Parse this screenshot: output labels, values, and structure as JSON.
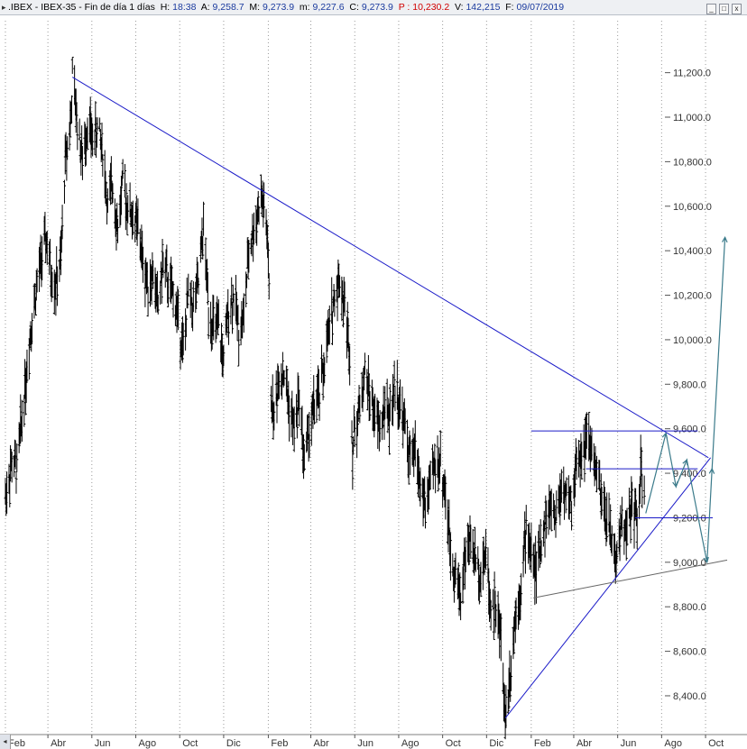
{
  "header": {
    "symbol": ".IBEX",
    "separator1": " - ",
    "name": "IBEX-35",
    "separator2": " - ",
    "period": "Fin de día 1 días",
    "h_label": "H:",
    "h_value": "18:38",
    "a_label": "A:",
    "a_value": "9,258.7",
    "m_label": "M:",
    "m_value": "9,273.9",
    "min_label": "m:",
    "min_value": "9,227.6",
    "c_label": "C:",
    "c_value": "9,273.9",
    "p_label": "P :",
    "p_value": "10,230.2",
    "v_label": "V:",
    "v_value": "142,215",
    "f_label": "F:",
    "f_value": "09/07/2019",
    "win_buttons": [
      "_",
      "□",
      "x"
    ]
  },
  "chart_data": {
    "type": "line",
    "style": "price bars (OHLC), black, daily",
    "grid": "dotted vertical gridlines at month ticks",
    "y_axis": {
      "position": "right",
      "ylim": [
        8250,
        11320
      ],
      "ticks": [
        8400,
        8600,
        8800,
        9000,
        9200,
        9400,
        9600,
        9800,
        10000,
        10200,
        10400,
        10600,
        10800,
        11000,
        11200
      ],
      "tick_labels": [
        "8,400.0",
        "8,600.0",
        "8,800.0",
        "9,000.0",
        "9,200.0",
        "9,400.0",
        "9,600.0",
        "9,800.0",
        "10,000.0",
        "10,200.0",
        "10,400.0",
        "10,600.0",
        "10,800.0",
        "11,000.0",
        "11,200.0"
      ]
    },
    "x_axis": {
      "xlim": [
        "2017-02-01",
        "2019-11-10"
      ],
      "ticks": [
        {
          "date": "2017-02-01",
          "label": "Feb"
        },
        {
          "date": "2017-04-01",
          "label": "Abr"
        },
        {
          "date": "2017-06-01",
          "label": "Jun"
        },
        {
          "date": "2017-08-01",
          "label": "Ago"
        },
        {
          "date": "2017-10-01",
          "label": "Oct"
        },
        {
          "date": "2017-12-01",
          "label": "Dic"
        },
        {
          "date": "2018-02-01",
          "label": "Feb"
        },
        {
          "date": "2018-04-01",
          "label": "Abr"
        },
        {
          "date": "2018-06-01",
          "label": "Jun"
        },
        {
          "date": "2018-08-01",
          "label": "Ago"
        },
        {
          "date": "2018-10-01",
          "label": "Oct"
        },
        {
          "date": "2018-12-01",
          "label": "Dic"
        },
        {
          "date": "2019-02-01",
          "label": "Feb"
        },
        {
          "date": "2019-04-01",
          "label": "Abr"
        },
        {
          "date": "2019-06-01",
          "label": "Jun"
        },
        {
          "date": "2019-08-01",
          "label": "Ago"
        },
        {
          "date": "2019-10-01",
          "label": "Oct"
        }
      ]
    },
    "series": [
      {
        "kind": "price",
        "points": [
          [
            "2017-02-01",
            9300
          ],
          [
            "2017-02-10",
            9450
          ],
          [
            "2017-02-17",
            9420
          ],
          [
            "2017-02-27",
            9750
          ],
          [
            "2017-03-08",
            10050
          ],
          [
            "2017-03-17",
            10250
          ],
          [
            "2017-03-24",
            10380
          ],
          [
            "2017-03-30",
            10450
          ],
          [
            "2017-04-05",
            10300
          ],
          [
            "2017-04-12",
            10250
          ],
          [
            "2017-04-19",
            10350
          ],
          [
            "2017-04-25",
            10800
          ],
          [
            "2017-05-03",
            11000
          ],
          [
            "2017-05-05",
            11180
          ],
          [
            "2017-05-12",
            10980
          ],
          [
            "2017-05-19",
            10800
          ],
          [
            "2017-05-26",
            10980
          ],
          [
            "2017-06-02",
            10900
          ],
          [
            "2017-06-09",
            10950
          ],
          [
            "2017-06-16",
            10850
          ],
          [
            "2017-06-23",
            10600
          ],
          [
            "2017-06-30",
            10700
          ],
          [
            "2017-07-07",
            10500
          ],
          [
            "2017-07-14",
            10700
          ],
          [
            "2017-07-21",
            10600
          ],
          [
            "2017-07-28",
            10550
          ],
          [
            "2017-08-04",
            10500
          ],
          [
            "2017-08-11",
            10350
          ],
          [
            "2017-08-18",
            10250
          ],
          [
            "2017-08-25",
            10300
          ],
          [
            "2017-09-01",
            10150
          ],
          [
            "2017-09-08",
            10350
          ],
          [
            "2017-09-15",
            10250
          ],
          [
            "2017-09-22",
            10200
          ],
          [
            "2017-09-29",
            10100
          ],
          [
            "2017-10-06",
            9950
          ],
          [
            "2017-10-13",
            10200
          ],
          [
            "2017-10-20",
            10150
          ],
          [
            "2017-10-27",
            10250
          ],
          [
            "2017-11-03",
            10500
          ],
          [
            "2017-11-10",
            10150
          ],
          [
            "2017-11-17",
            10050
          ],
          [
            "2017-11-24",
            10050
          ],
          [
            "2017-12-01",
            9900
          ],
          [
            "2017-12-08",
            10150
          ],
          [
            "2017-12-15",
            10200
          ],
          [
            "2017-12-22",
            10050
          ],
          [
            "2017-12-29",
            10100
          ],
          [
            "2018-01-05",
            10400
          ],
          [
            "2018-01-12",
            10500
          ],
          [
            "2018-01-19",
            10600
          ],
          [
            "2018-01-24",
            10630
          ],
          [
            "2018-01-31",
            10450
          ],
          [
            "2018-02-02",
            10200
          ],
          [
            "2018-02-05",
            9750
          ],
          [
            "2018-02-09",
            9650
          ],
          [
            "2018-02-16",
            9850
          ],
          [
            "2018-02-23",
            9850
          ],
          [
            "2018-03-02",
            9700
          ],
          [
            "2018-03-09",
            9600
          ],
          [
            "2018-03-16",
            9750
          ],
          [
            "2018-03-23",
            9450
          ],
          [
            "2018-03-30",
            9600
          ],
          [
            "2018-04-06",
            9700
          ],
          [
            "2018-04-13",
            9750
          ],
          [
            "2018-04-20",
            9900
          ],
          [
            "2018-04-27",
            10050
          ],
          [
            "2018-05-04",
            10200
          ],
          [
            "2018-05-10",
            10280
          ],
          [
            "2018-05-18",
            10150
          ],
          [
            "2018-05-25",
            9950
          ],
          [
            "2018-05-29",
            9500
          ],
          [
            "2018-06-01",
            9600
          ],
          [
            "2018-06-08",
            9700
          ],
          [
            "2018-06-15",
            9850
          ],
          [
            "2018-06-22",
            9750
          ],
          [
            "2018-06-29",
            9650
          ],
          [
            "2018-07-06",
            9600
          ],
          [
            "2018-07-13",
            9700
          ],
          [
            "2018-07-20",
            9650
          ],
          [
            "2018-07-27",
            9800
          ],
          [
            "2018-08-03",
            9700
          ],
          [
            "2018-08-10",
            9600
          ],
          [
            "2018-08-17",
            9450
          ],
          [
            "2018-08-24",
            9500
          ],
          [
            "2018-08-31",
            9350
          ],
          [
            "2018-09-07",
            9250
          ],
          [
            "2018-09-14",
            9350
          ],
          [
            "2018-09-21",
            9450
          ],
          [
            "2018-09-28",
            9450
          ],
          [
            "2018-10-05",
            9300
          ],
          [
            "2018-10-12",
            9050
          ],
          [
            "2018-10-19",
            8950
          ],
          [
            "2018-10-26",
            8850
          ],
          [
            "2018-11-02",
            9050
          ],
          [
            "2018-11-09",
            9100
          ],
          [
            "2018-11-16",
            9000
          ],
          [
            "2018-11-23",
            8950
          ],
          [
            "2018-11-30",
            9050
          ],
          [
            "2018-12-07",
            8800
          ],
          [
            "2018-12-14",
            8800
          ],
          [
            "2018-12-21",
            8650
          ],
          [
            "2018-12-27",
            8300
          ],
          [
            "2019-01-04",
            8550
          ],
          [
            "2019-01-11",
            8800
          ],
          [
            "2019-01-18",
            8900
          ],
          [
            "2019-01-25",
            9150
          ],
          [
            "2019-02-01",
            9050
          ],
          [
            "2019-02-08",
            8950
          ],
          [
            "2019-02-15",
            9100
          ],
          [
            "2019-02-22",
            9200
          ],
          [
            "2019-03-01",
            9250
          ],
          [
            "2019-03-08",
            9200
          ],
          [
            "2019-03-15",
            9350
          ],
          [
            "2019-03-22",
            9300
          ],
          [
            "2019-03-29",
            9250
          ],
          [
            "2019-04-05",
            9450
          ],
          [
            "2019-04-12",
            9500
          ],
          [
            "2019-04-19",
            9550
          ],
          [
            "2019-04-26",
            9500
          ],
          [
            "2019-05-03",
            9400
          ],
          [
            "2019-05-10",
            9250
          ],
          [
            "2019-05-17",
            9200
          ],
          [
            "2019-05-24",
            9100
          ],
          [
            "2019-05-31",
            9000
          ],
          [
            "2019-06-07",
            9200
          ],
          [
            "2019-06-14",
            9150
          ],
          [
            "2019-06-21",
            9250
          ],
          [
            "2019-06-28",
            9200
          ],
          [
            "2019-07-03",
            9400
          ],
          [
            "2019-07-09",
            9270
          ]
        ]
      },
      {
        "kind": "trendline",
        "color": "#1a1ac8",
        "points": [
          [
            "2017-05-05",
            11180
          ],
          [
            "2019-10-05",
            9470
          ]
        ]
      },
      {
        "kind": "trendline",
        "color": "#1a1ac8",
        "points": [
          [
            "2018-12-27",
            8300
          ],
          [
            "2019-10-08",
            9470
          ]
        ]
      },
      {
        "kind": "trendline",
        "color": "#666666",
        "points": [
          [
            "2019-02-04",
            8840
          ],
          [
            "2019-10-31",
            9010
          ]
        ]
      },
      {
        "kind": "horizontal",
        "color": "#1a1ac8",
        "y": 9590,
        "from": "2019-02-01",
        "to": "2019-09-20"
      },
      {
        "kind": "horizontal",
        "color": "#1a1ac8",
        "y": 9420,
        "from": "2019-04-18",
        "to": "2019-09-20"
      },
      {
        "kind": "horizontal",
        "color": "#1a1ac8",
        "y": 9200,
        "from": "2019-06-25",
        "to": "2019-10-11"
      },
      {
        "kind": "projection",
        "color": "#3a7a8a",
        "points": [
          [
            "2019-07-10",
            9220
          ],
          [
            "2019-08-07",
            9580
          ],
          [
            "2019-08-21",
            9340
          ],
          [
            "2019-09-05",
            9460
          ],
          [
            "2019-10-03",
            9000
          ],
          [
            "2019-10-10",
            9420
          ],
          [
            "2019-10-28",
            10460
          ]
        ]
      }
    ]
  }
}
